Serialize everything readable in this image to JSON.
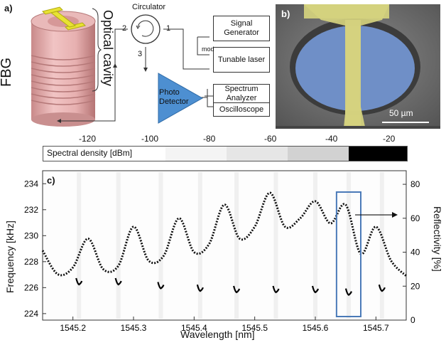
{
  "panel_a": {
    "label": "a)",
    "fbg_label": "FBG",
    "cavity_label": "Optical cavity",
    "circulator_label": "Circulator",
    "port1": "1",
    "port2": "2",
    "port3": "3",
    "signal_generator": "Signal Generator",
    "mod_label": "mod",
    "tunable_laser": "Tunable laser",
    "photo_detector": "Photo Detector",
    "spectrum_analyzer": "Spectrum Analyzer",
    "oscilloscope": "Oscilloscope"
  },
  "panel_b": {
    "label": "b)",
    "scale_bar": "50 µm"
  },
  "colorbar": {
    "label": "Spectral density [dBm]",
    "ticks": [
      "-120",
      "-100",
      "-80",
      "-60",
      "-40",
      "-20"
    ]
  },
  "chart_data": {
    "type": "heatmap",
    "panel_label": "c)",
    "xlabel": "Wavelength [nm]",
    "ylabel": "Frequency [kHz]",
    "y2label": "Reflectivity [%]",
    "xlim": [
      1545.15,
      1545.75
    ],
    "ylim": [
      223.5,
      235.0
    ],
    "y2lim": [
      0,
      88
    ],
    "x_ticks": [
      "1545.2",
      "1545.3",
      "1545.4",
      "1545.5",
      "1545.6",
      "1545.7"
    ],
    "y_ticks": [
      "224",
      "226",
      "228",
      "230",
      "232",
      "234"
    ],
    "y2_ticks": [
      "0",
      "20",
      "40",
      "60",
      "80"
    ],
    "grid": false,
    "reflectivity_curve": {
      "style": "dotted",
      "x": [
        1545.15,
        1545.175,
        1545.2,
        1545.225,
        1545.25,
        1545.275,
        1545.3,
        1545.325,
        1545.35,
        1545.375,
        1545.4,
        1545.425,
        1545.45,
        1545.475,
        1545.5,
        1545.525,
        1545.55,
        1545.575,
        1545.6,
        1545.625,
        1545.65,
        1545.675,
        1545.7,
        1545.725,
        1545.75
      ],
      "y": [
        41,
        27,
        31,
        48,
        30,
        32,
        55,
        35,
        38,
        60,
        40,
        45,
        68,
        48,
        55,
        75,
        55,
        60,
        70,
        57,
        68,
        39,
        55,
        35,
        26
      ]
    },
    "resonance_points": [
      {
        "x": 1545.21,
        "y": 226.4
      },
      {
        "x": 1545.275,
        "y": 226.4
      },
      {
        "x": 1545.345,
        "y": 226.1
      },
      {
        "x": 1545.41,
        "y": 225.9
      },
      {
        "x": 1545.47,
        "y": 225.8
      },
      {
        "x": 1545.535,
        "y": 225.8
      },
      {
        "x": 1545.6,
        "y": 225.8
      },
      {
        "x": 1545.655,
        "y": 225.6
      },
      {
        "x": 1545.71,
        "y": 225.9
      }
    ],
    "highlight_range_x": [
      1545.635,
      1545.675
    ],
    "colors": {
      "curve": "#111111",
      "highlight": "#4a7ab8",
      "points": "#000000"
    }
  }
}
